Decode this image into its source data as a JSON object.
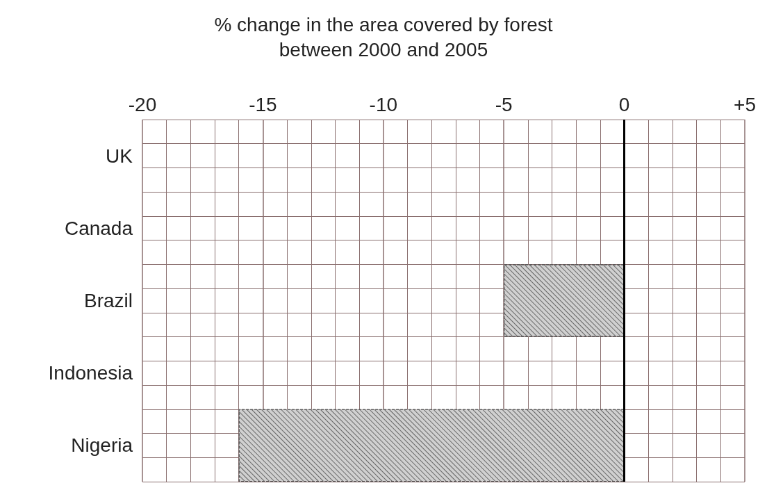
{
  "chart_data": {
    "type": "bar",
    "orientation": "horizontal",
    "title": "% change in the area covered by forest\nbetween 2000 and 2005",
    "categories": [
      "UK",
      "Canada",
      "Brazil",
      "Indonesia",
      "Nigeria"
    ],
    "values": [
      null,
      null,
      -5,
      null,
      -16
    ],
    "color": "#d0d0d0",
    "xlim": [
      -20,
      5
    ],
    "xticks": [
      -20,
      -15,
      -10,
      -5,
      0,
      {
        "value": 5,
        "label": "+5"
      }
    ],
    "ref_lines": [
      {
        "axis": "x",
        "value": 0,
        "color": "#000000"
      }
    ],
    "grid": true
  }
}
